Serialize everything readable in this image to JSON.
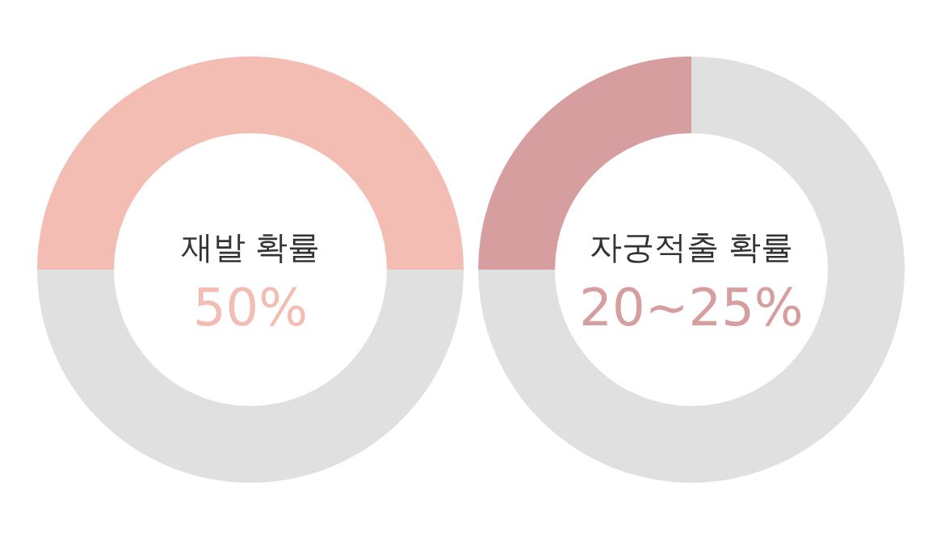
{
  "chart_data": [
    {
      "type": "donut",
      "title": "재발 확률",
      "categories": [
        null,
        null
      ],
      "values": [
        50,
        50
      ],
      "colors": [
        "#f4bdb3",
        "#e0e0e0"
      ],
      "subtitle": "50%",
      "legend": false
    },
    {
      "type": "donut",
      "title": "자궁적출 확률",
      "categories": [
        null,
        null
      ],
      "values": [
        25,
        75
      ],
      "colors": [
        "#d69e9e",
        "#e0e0e0"
      ],
      "subtitle": "20~25%",
      "legend": false
    }
  ]
}
